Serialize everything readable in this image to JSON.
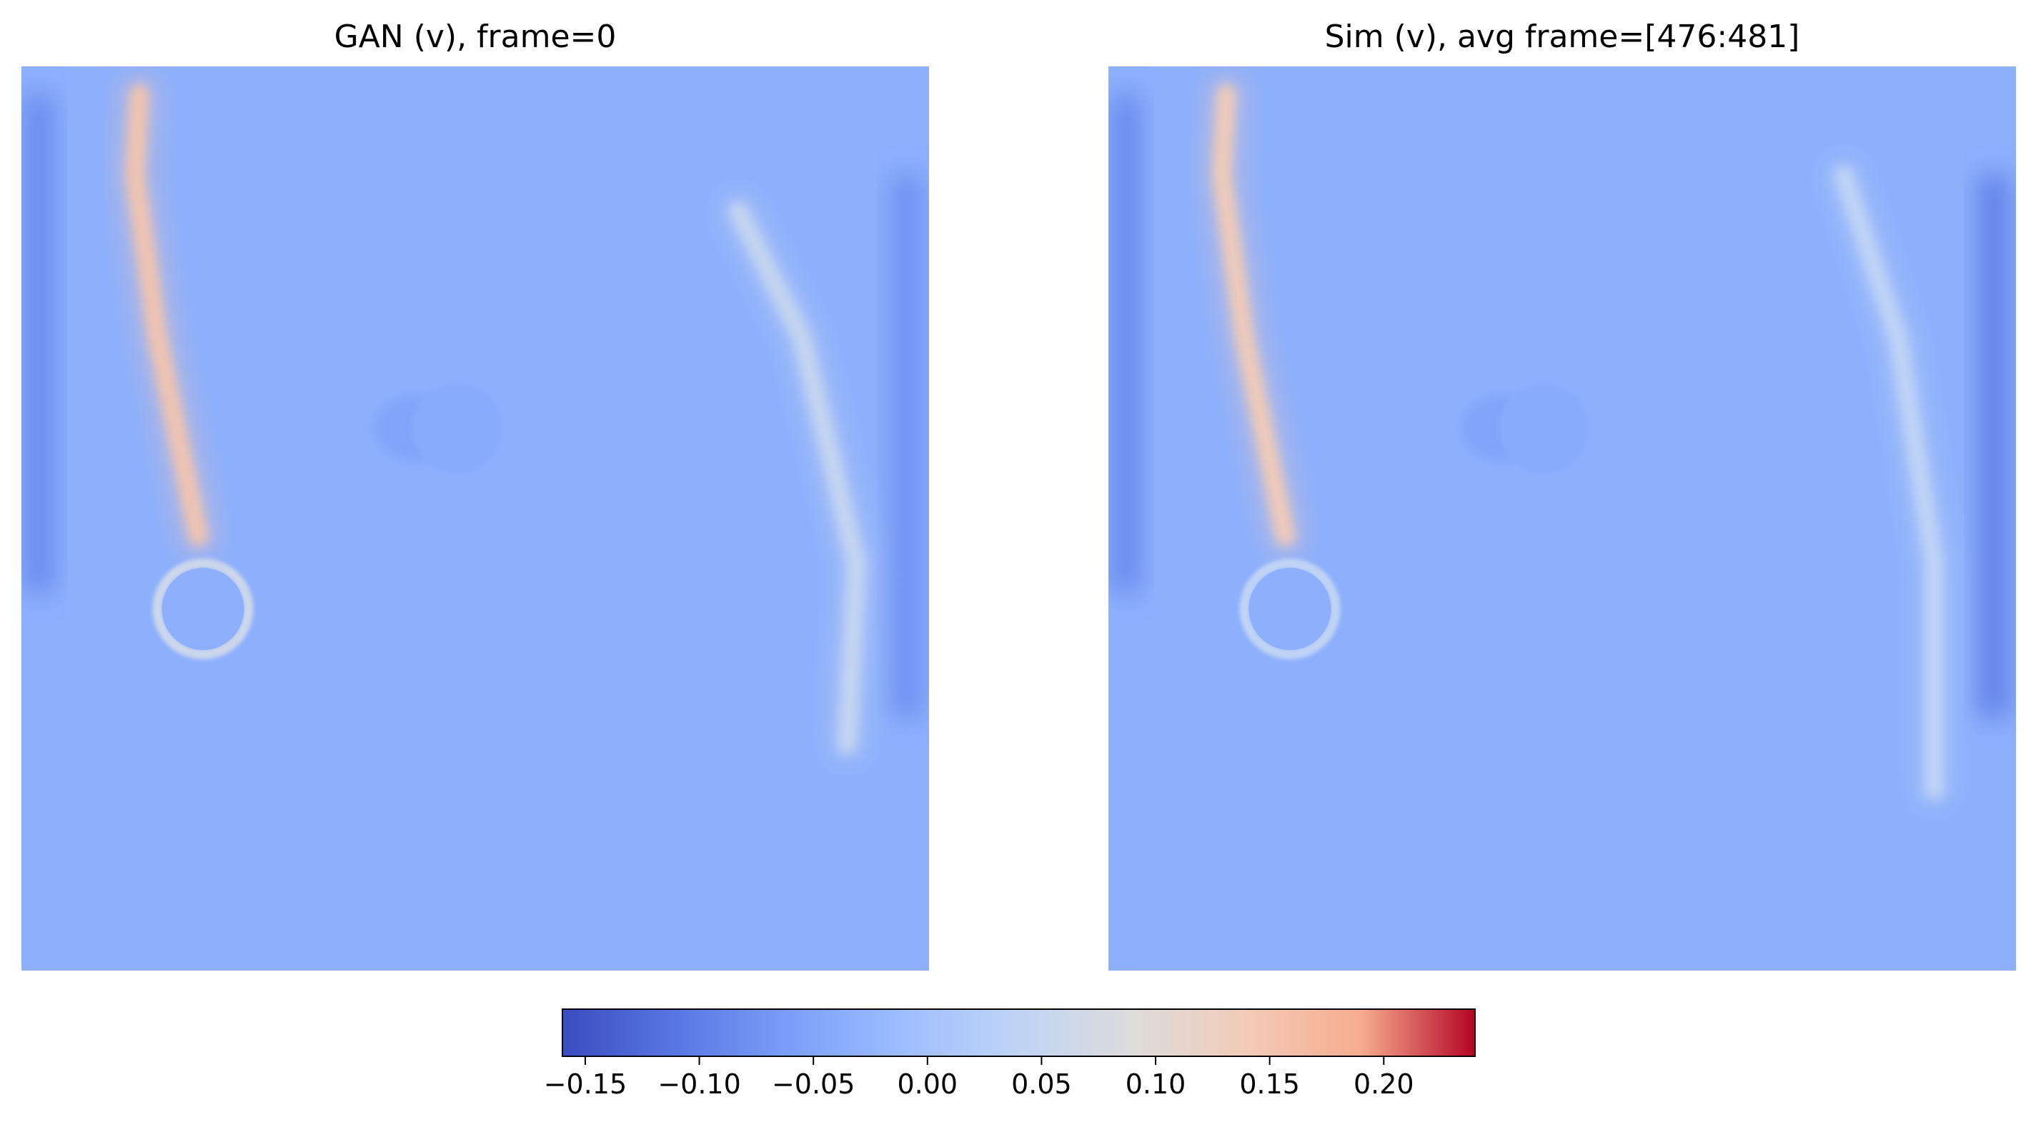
{
  "chart_data": {
    "type": "heatmap",
    "colormap": "coolwarm",
    "panels": [
      {
        "title": "GAN (v), frame=0"
      },
      {
        "title": "Sim (v), avg frame=[476:481]"
      }
    ],
    "colorbar": {
      "vmin": -0.16,
      "vmax": 0.24,
      "ticks": [
        -0.15,
        -0.1,
        -0.05,
        0.0,
        0.05,
        0.1,
        0.15,
        0.2
      ],
      "tick_labels": [
        "−0.15",
        "−0.10",
        "−0.05",
        "0.00",
        "0.05",
        "0.10",
        "0.15",
        "0.20"
      ],
      "orientation": "horizontal",
      "placement": "bottom"
    },
    "background_value": -0.035,
    "field_features": [
      {
        "panel": 0,
        "kind": "filament",
        "points": [
          [
            0.13,
            0.03
          ],
          [
            0.125,
            0.12
          ],
          [
            0.15,
            0.3
          ],
          [
            0.195,
            0.52
          ]
        ],
        "value": 0.15
      },
      {
        "panel": 0,
        "kind": "ring",
        "center": [
          0.2,
          0.6
        ],
        "radius": 0.05,
        "value": 0.06,
        "inner_value": -0.035
      },
      {
        "panel": 0,
        "kind": "circle",
        "center": [
          0.48,
          0.4
        ],
        "radius": 0.05,
        "value": -0.04
      },
      {
        "panel": 0,
        "kind": "left-band",
        "value": -0.09
      },
      {
        "panel": 0,
        "kind": "right-band",
        "value": -0.08
      },
      {
        "panel": 0,
        "kind": "filament",
        "points": [
          [
            0.79,
            0.16
          ],
          [
            0.86,
            0.3
          ],
          [
            0.92,
            0.55
          ],
          [
            0.91,
            0.75
          ]
        ],
        "value": 0.05
      },
      {
        "panel": 1,
        "kind": "filament",
        "points": [
          [
            0.13,
            0.03
          ],
          [
            0.125,
            0.12
          ],
          [
            0.15,
            0.3
          ],
          [
            0.195,
            0.52
          ]
        ],
        "value": 0.14
      },
      {
        "panel": 1,
        "kind": "ring",
        "center": [
          0.2,
          0.6
        ],
        "radius": 0.05,
        "value": 0.04,
        "inner_value": -0.035
      },
      {
        "panel": 1,
        "kind": "circle",
        "center": [
          0.48,
          0.4
        ],
        "radius": 0.05,
        "value": -0.04
      },
      {
        "panel": 1,
        "kind": "left-band",
        "value": -0.09
      },
      {
        "panel": 1,
        "kind": "right-band",
        "value": -0.1
      },
      {
        "panel": 1,
        "kind": "filament",
        "points": [
          [
            0.81,
            0.12
          ],
          [
            0.87,
            0.3
          ],
          [
            0.91,
            0.55
          ],
          [
            0.91,
            0.8
          ]
        ],
        "value": 0.04
      }
    ]
  }
}
